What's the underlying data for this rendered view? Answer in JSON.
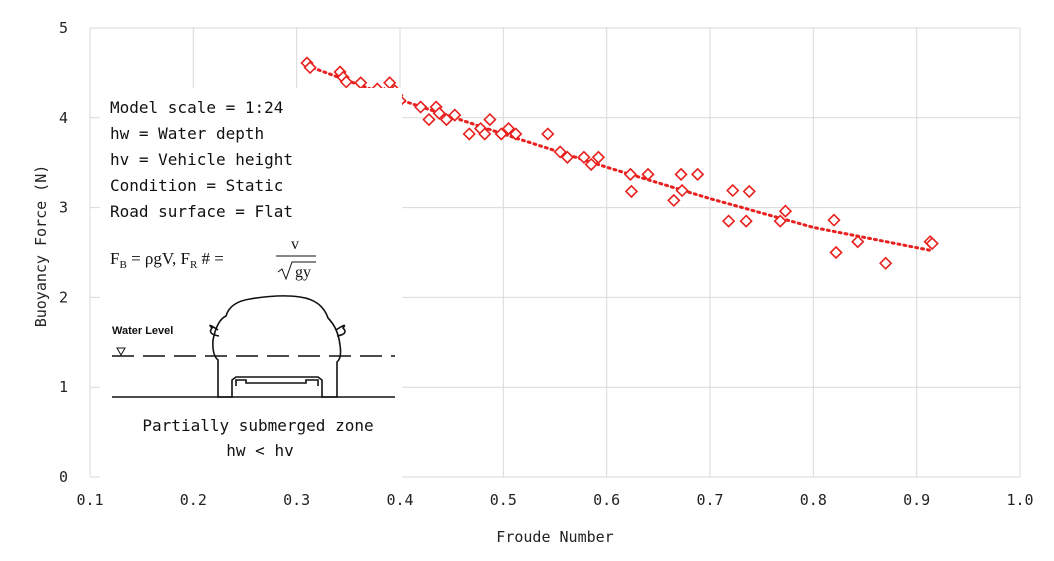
{
  "chart_data": {
    "type": "scatter",
    "xlabel": "Froude Number",
    "ylabel": "Buoyancy Force (N)",
    "xlim": [
      0.1,
      1.0
    ],
    "ylim": [
      0,
      5
    ],
    "xticks": [
      "0.1",
      "0.2",
      "0.3",
      "0.4",
      "0.5",
      "0.6",
      "0.7",
      "0.8",
      "0.9",
      "1.0"
    ],
    "yticks": [
      "0",
      "1",
      "2",
      "3",
      "4",
      "5"
    ],
    "grid": true,
    "marker": "diamond-open",
    "marker_color": "#e8201e",
    "trendline": {
      "style": "dotted",
      "color": "#e8201e",
      "points": [
        [
          0.31,
          4.58
        ],
        [
          0.4,
          4.2
        ],
        [
          0.5,
          3.82
        ],
        [
          0.6,
          3.45
        ],
        [
          0.7,
          3.1
        ],
        [
          0.8,
          2.78
        ],
        [
          0.915,
          2.52
        ]
      ]
    },
    "points": [
      [
        0.31,
        4.61
      ],
      [
        0.313,
        4.56
      ],
      [
        0.342,
        4.51
      ],
      [
        0.345,
        4.45
      ],
      [
        0.348,
        4.4
      ],
      [
        0.362,
        4.39
      ],
      [
        0.37,
        4.2
      ],
      [
        0.378,
        4.32
      ],
      [
        0.385,
        4.27
      ],
      [
        0.39,
        4.39
      ],
      [
        0.392,
        4.12
      ],
      [
        0.395,
        4.3
      ],
      [
        0.397,
        4.25
      ],
      [
        0.4,
        4.19
      ],
      [
        0.42,
        4.12
      ],
      [
        0.428,
        3.98
      ],
      [
        0.435,
        4.12
      ],
      [
        0.438,
        4.05
      ],
      [
        0.445,
        3.98
      ],
      [
        0.453,
        4.03
      ],
      [
        0.467,
        3.82
      ],
      [
        0.478,
        3.88
      ],
      [
        0.482,
        3.82
      ],
      [
        0.487,
        3.98
      ],
      [
        0.498,
        3.82
      ],
      [
        0.505,
        3.88
      ],
      [
        0.512,
        3.82
      ],
      [
        0.543,
        3.82
      ],
      [
        0.555,
        3.62
      ],
      [
        0.562,
        3.56
      ],
      [
        0.578,
        3.56
      ],
      [
        0.585,
        3.48
      ],
      [
        0.592,
        3.56
      ],
      [
        0.623,
        3.37
      ],
      [
        0.624,
        3.18
      ],
      [
        0.64,
        3.37
      ],
      [
        0.665,
        3.08
      ],
      [
        0.672,
        3.37
      ],
      [
        0.673,
        3.19
      ],
      [
        0.688,
        3.37
      ],
      [
        0.718,
        2.85
      ],
      [
        0.722,
        3.19
      ],
      [
        0.735,
        2.85
      ],
      [
        0.738,
        3.18
      ],
      [
        0.768,
        2.85
      ],
      [
        0.773,
        2.96
      ],
      [
        0.82,
        2.86
      ],
      [
        0.822,
        2.5
      ],
      [
        0.843,
        2.62
      ],
      [
        0.87,
        2.38
      ],
      [
        0.913,
        2.62
      ],
      [
        0.915,
        2.6
      ]
    ]
  },
  "annotation": {
    "lines": [
      "Model scale = 1:24",
      "hw = Water depth",
      "hv = Vehicle height",
      "Condition = Static",
      "Road surface = Flat"
    ],
    "formula_fb": "F",
    "formula_fb_sub": "B",
    "formula_fb_rest": " = ρgV, F",
    "formula_fr_sub": "R",
    "formula_fr_rest": " # = ",
    "formula_num": "v",
    "formula_den": "gy",
    "water_level_label": "Water Level",
    "zone_label": "Partially submerged zone",
    "zone_condition": "hw < hv"
  }
}
